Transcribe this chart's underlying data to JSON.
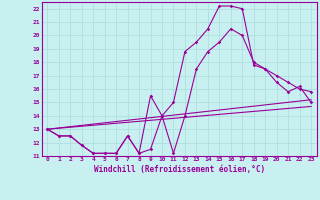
{
  "xlabel": "Windchill (Refroidissement éolien,°C)",
  "bg_color": "#c8f0f0",
  "grid_color": "#b0dede",
  "line_color": "#990099",
  "xlim": [
    -0.5,
    23.5
  ],
  "ylim": [
    11,
    22.5
  ],
  "xticks": [
    0,
    1,
    2,
    3,
    4,
    5,
    6,
    7,
    8,
    9,
    10,
    11,
    12,
    13,
    14,
    15,
    16,
    17,
    18,
    19,
    20,
    21,
    22,
    23
  ],
  "yticks": [
    11,
    12,
    13,
    14,
    15,
    16,
    17,
    18,
    19,
    20,
    21,
    22
  ],
  "line1_x": [
    0,
    1,
    2,
    3,
    4,
    5,
    6,
    7,
    8,
    9,
    10,
    11,
    12,
    13,
    14,
    15,
    16,
    17,
    18,
    19,
    20,
    21,
    22,
    23
  ],
  "line1_y": [
    13.0,
    12.5,
    12.5,
    11.8,
    11.2,
    11.2,
    11.2,
    12.5,
    11.2,
    15.5,
    14.0,
    11.2,
    14.0,
    17.5,
    18.8,
    19.5,
    20.5,
    20.0,
    18.0,
    17.5,
    17.0,
    16.5,
    16.0,
    15.8
  ],
  "line2_x": [
    0,
    1,
    2,
    3,
    4,
    5,
    6,
    7,
    8,
    9,
    10,
    11,
    12,
    13,
    14,
    15,
    16,
    17,
    18,
    19,
    20,
    21,
    22,
    23
  ],
  "line2_y": [
    13.0,
    12.5,
    12.5,
    11.8,
    11.2,
    11.2,
    11.2,
    12.5,
    11.2,
    11.5,
    14.0,
    15.0,
    18.8,
    19.5,
    20.5,
    22.2,
    22.2,
    22.0,
    17.8,
    17.5,
    16.5,
    15.8,
    16.2,
    15.0
  ],
  "line3_x": [
    0,
    23
  ],
  "line3_y": [
    13.0,
    15.2
  ],
  "line4_x": [
    0,
    23
  ],
  "line4_y": [
    13.0,
    14.7
  ]
}
